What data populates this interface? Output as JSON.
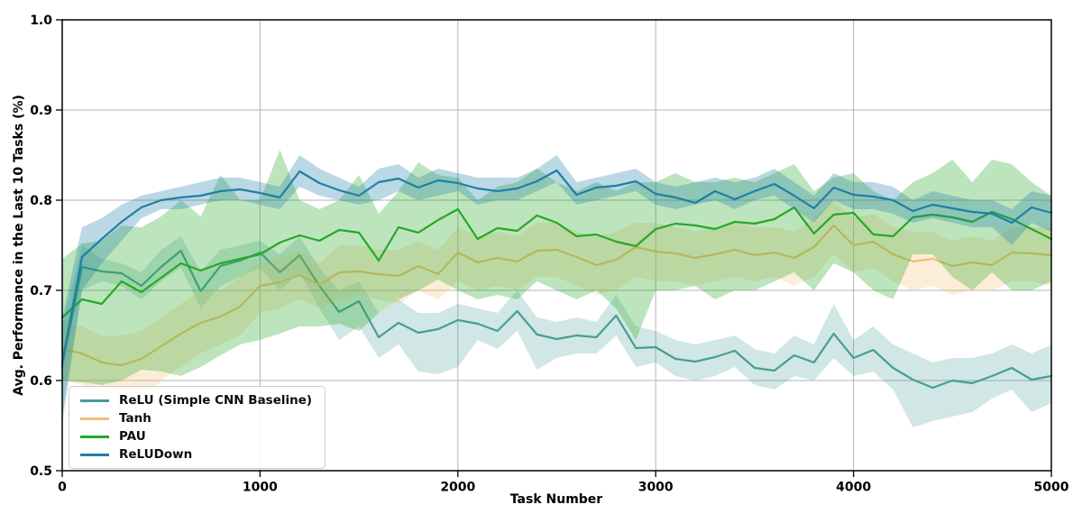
{
  "chart_data": {
    "type": "line",
    "title": "",
    "xlabel": "Task Number",
    "ylabel": "Avg. Performance in the Last 10 Tasks (%)",
    "xlim": [
      0,
      5000
    ],
    "ylim": [
      0.5,
      1.0
    ],
    "x_ticks": [
      0,
      1000,
      2000,
      3000,
      4000,
      5000
    ],
    "x_tick_labels": [
      "0",
      "1000",
      "2000",
      "3000",
      "4000",
      "5000"
    ],
    "y_ticks": [
      0.5,
      0.6,
      0.7,
      0.8,
      0.9,
      1.0
    ],
    "y_tick_labels": [
      "0.5",
      "0.6",
      "0.7",
      "0.8",
      "0.9",
      "1.0"
    ],
    "grid": true,
    "grid_color": "#b3b3b3",
    "spine_color": "#000000",
    "legend_position": "lower-left",
    "x": [
      0,
      100,
      200,
      300,
      400,
      500,
      600,
      700,
      800,
      900,
      1000,
      1100,
      1200,
      1300,
      1400,
      1500,
      1600,
      1700,
      1800,
      1900,
      2000,
      2100,
      2200,
      2300,
      2400,
      2500,
      2600,
      2700,
      2800,
      2900,
      3000,
      3100,
      3200,
      3300,
      3400,
      3500,
      3600,
      3700,
      3800,
      3900,
      4000,
      4100,
      4200,
      4300,
      4400,
      4500,
      4600,
      4700,
      4800,
      4900,
      5000
    ],
    "series": [
      {
        "name": "ReLU (Simple CNN Baseline)",
        "color": "#469e96",
        "band_opacity": 0.25,
        "values": [
          0.615,
          0.726,
          0.721,
          0.719,
          0.705,
          0.726,
          0.744,
          0.699,
          0.727,
          0.733,
          0.742,
          0.72,
          0.739,
          0.705,
          0.676,
          0.688,
          0.648,
          0.664,
          0.653,
          0.657,
          0.667,
          0.663,
          0.655,
          0.677,
          0.651,
          0.646,
          0.65,
          0.648,
          0.672,
          0.636,
          0.637,
          0.624,
          0.621,
          0.626,
          0.633,
          0.614,
          0.611,
          0.628,
          0.62,
          0.652,
          0.625,
          0.634,
          0.614,
          0.601,
          0.592,
          0.6,
          0.597,
          0.605,
          0.614,
          0.601,
          0.605
        ],
        "band_lo": [
          0.55,
          0.7,
          0.71,
          0.705,
          0.69,
          0.71,
          0.725,
          0.68,
          0.705,
          0.715,
          0.725,
          0.7,
          0.72,
          0.68,
          0.645,
          0.66,
          0.625,
          0.64,
          0.61,
          0.607,
          0.615,
          0.645,
          0.635,
          0.655,
          0.612,
          0.625,
          0.63,
          0.63,
          0.65,
          0.615,
          0.62,
          0.605,
          0.6,
          0.605,
          0.615,
          0.595,
          0.59,
          0.605,
          0.6,
          0.625,
          0.605,
          0.61,
          0.59,
          0.548,
          0.555,
          0.56,
          0.565,
          0.58,
          0.59,
          0.565,
          0.575
        ],
        "band_hi": [
          0.66,
          0.75,
          0.735,
          0.73,
          0.72,
          0.745,
          0.76,
          0.72,
          0.745,
          0.75,
          0.755,
          0.74,
          0.76,
          0.725,
          0.7,
          0.71,
          0.675,
          0.69,
          0.675,
          0.675,
          0.685,
          0.68,
          0.675,
          0.7,
          0.67,
          0.665,
          0.67,
          0.665,
          0.695,
          0.66,
          0.655,
          0.645,
          0.64,
          0.645,
          0.65,
          0.635,
          0.63,
          0.65,
          0.64,
          0.685,
          0.645,
          0.66,
          0.64,
          0.63,
          0.62,
          0.625,
          0.625,
          0.63,
          0.64,
          0.63,
          0.64
        ]
      },
      {
        "name": "Tanh",
        "color": "#f3be74",
        "band_opacity": 0.28,
        "values": [
          0.635,
          0.63,
          0.62,
          0.617,
          0.624,
          0.638,
          0.652,
          0.664,
          0.671,
          0.682,
          0.705,
          0.709,
          0.717,
          0.706,
          0.72,
          0.721,
          0.718,
          0.716,
          0.727,
          0.718,
          0.742,
          0.731,
          0.736,
          0.732,
          0.744,
          0.745,
          0.737,
          0.728,
          0.734,
          0.748,
          0.743,
          0.741,
          0.736,
          0.74,
          0.745,
          0.739,
          0.742,
          0.736,
          0.748,
          0.772,
          0.75,
          0.754,
          0.74,
          0.732,
          0.735,
          0.727,
          0.731,
          0.728,
          0.742,
          0.741,
          0.739
        ],
        "band_lo": [
          0.6,
          0.595,
          0.585,
          0.58,
          0.575,
          0.6,
          0.615,
          0.63,
          0.64,
          0.65,
          0.675,
          0.68,
          0.69,
          0.68,
          0.69,
          0.695,
          0.69,
          0.685,
          0.7,
          0.69,
          0.71,
          0.7,
          0.705,
          0.7,
          0.715,
          0.715,
          0.705,
          0.695,
          0.7,
          0.715,
          0.71,
          0.71,
          0.705,
          0.71,
          0.715,
          0.71,
          0.715,
          0.705,
          0.715,
          0.74,
          0.72,
          0.725,
          0.71,
          0.7,
          0.705,
          0.695,
          0.7,
          0.7,
          0.71,
          0.71,
          0.705
        ],
        "band_hi": [
          0.665,
          0.66,
          0.65,
          0.65,
          0.655,
          0.67,
          0.685,
          0.7,
          0.7,
          0.715,
          0.73,
          0.735,
          0.745,
          0.73,
          0.75,
          0.75,
          0.745,
          0.745,
          0.755,
          0.745,
          0.77,
          0.76,
          0.765,
          0.76,
          0.775,
          0.775,
          0.765,
          0.76,
          0.765,
          0.775,
          0.775,
          0.77,
          0.765,
          0.77,
          0.775,
          0.77,
          0.77,
          0.765,
          0.78,
          0.8,
          0.78,
          0.785,
          0.77,
          0.765,
          0.765,
          0.755,
          0.76,
          0.755,
          0.77,
          0.77,
          0.77
        ]
      },
      {
        "name": "PAU",
        "color": "#26a826",
        "band_opacity": 0.3,
        "values": [
          0.67,
          0.69,
          0.685,
          0.71,
          0.698,
          0.714,
          0.73,
          0.722,
          0.73,
          0.735,
          0.74,
          0.753,
          0.761,
          0.755,
          0.767,
          0.764,
          0.733,
          0.77,
          0.764,
          0.778,
          0.79,
          0.757,
          0.769,
          0.766,
          0.783,
          0.775,
          0.76,
          0.762,
          0.754,
          0.749,
          0.768,
          0.774,
          0.772,
          0.768,
          0.776,
          0.774,
          0.779,
          0.792,
          0.763,
          0.784,
          0.786,
          0.762,
          0.76,
          0.781,
          0.784,
          0.781,
          0.776,
          0.787,
          0.779,
          0.768,
          0.757
        ],
        "band_lo": [
          0.6,
          0.598,
          0.595,
          0.6,
          0.612,
          0.61,
          0.605,
          0.615,
          0.628,
          0.64,
          0.645,
          0.652,
          0.66,
          0.66,
          0.663,
          0.655,
          0.675,
          0.69,
          0.7,
          0.712,
          0.7,
          0.69,
          0.695,
          0.69,
          0.71,
          0.7,
          0.69,
          0.7,
          0.68,
          0.645,
          0.7,
          0.7,
          0.705,
          0.69,
          0.7,
          0.7,
          0.71,
          0.72,
          0.7,
          0.73,
          0.72,
          0.7,
          0.69,
          0.74,
          0.74,
          0.715,
          0.7,
          0.72,
          0.7,
          0.7,
          0.71
        ],
        "band_hi": [
          0.735,
          0.752,
          0.755,
          0.772,
          0.77,
          0.782,
          0.8,
          0.782,
          0.828,
          0.8,
          0.8,
          0.856,
          0.8,
          0.79,
          0.8,
          0.828,
          0.785,
          0.81,
          0.842,
          0.828,
          0.825,
          0.8,
          0.815,
          0.82,
          0.835,
          0.82,
          0.81,
          0.82,
          0.81,
          0.82,
          0.82,
          0.83,
          0.82,
          0.82,
          0.825,
          0.82,
          0.83,
          0.84,
          0.81,
          0.825,
          0.83,
          0.81,
          0.8,
          0.82,
          0.83,
          0.845,
          0.82,
          0.845,
          0.84,
          0.82,
          0.805
        ]
      },
      {
        "name": "ReLUDown",
        "color": "#1f7fa8",
        "band_opacity": 0.3,
        "values": [
          0.62,
          0.737,
          0.757,
          0.776,
          0.792,
          0.8,
          0.803,
          0.805,
          0.81,
          0.812,
          0.808,
          0.803,
          0.832,
          0.819,
          0.811,
          0.805,
          0.82,
          0.824,
          0.814,
          0.822,
          0.819,
          0.813,
          0.81,
          0.813,
          0.821,
          0.833,
          0.806,
          0.814,
          0.816,
          0.821,
          0.807,
          0.803,
          0.797,
          0.81,
          0.801,
          0.81,
          0.818,
          0.805,
          0.791,
          0.814,
          0.806,
          0.804,
          0.8,
          0.788,
          0.795,
          0.791,
          0.787,
          0.785,
          0.775,
          0.792,
          0.786
        ],
        "band_lo": [
          0.56,
          0.7,
          0.73,
          0.755,
          0.78,
          0.79,
          0.79,
          0.795,
          0.8,
          0.8,
          0.795,
          0.79,
          0.815,
          0.805,
          0.8,
          0.795,
          0.8,
          0.81,
          0.8,
          0.805,
          0.81,
          0.795,
          0.8,
          0.8,
          0.81,
          0.82,
          0.795,
          0.8,
          0.805,
          0.81,
          0.795,
          0.79,
          0.795,
          0.8,
          0.79,
          0.8,
          0.805,
          0.79,
          0.775,
          0.8,
          0.79,
          0.79,
          0.785,
          0.775,
          0.78,
          0.775,
          0.77,
          0.77,
          0.75,
          0.775,
          0.765
        ],
        "band_hi": [
          0.67,
          0.77,
          0.78,
          0.795,
          0.805,
          0.81,
          0.815,
          0.82,
          0.825,
          0.825,
          0.82,
          0.815,
          0.85,
          0.835,
          0.825,
          0.815,
          0.835,
          0.84,
          0.825,
          0.835,
          0.83,
          0.825,
          0.825,
          0.825,
          0.835,
          0.85,
          0.82,
          0.825,
          0.83,
          0.835,
          0.82,
          0.815,
          0.82,
          0.825,
          0.82,
          0.825,
          0.835,
          0.82,
          0.805,
          0.83,
          0.82,
          0.82,
          0.815,
          0.8,
          0.81,
          0.805,
          0.8,
          0.8,
          0.79,
          0.81,
          0.805
        ]
      }
    ]
  }
}
